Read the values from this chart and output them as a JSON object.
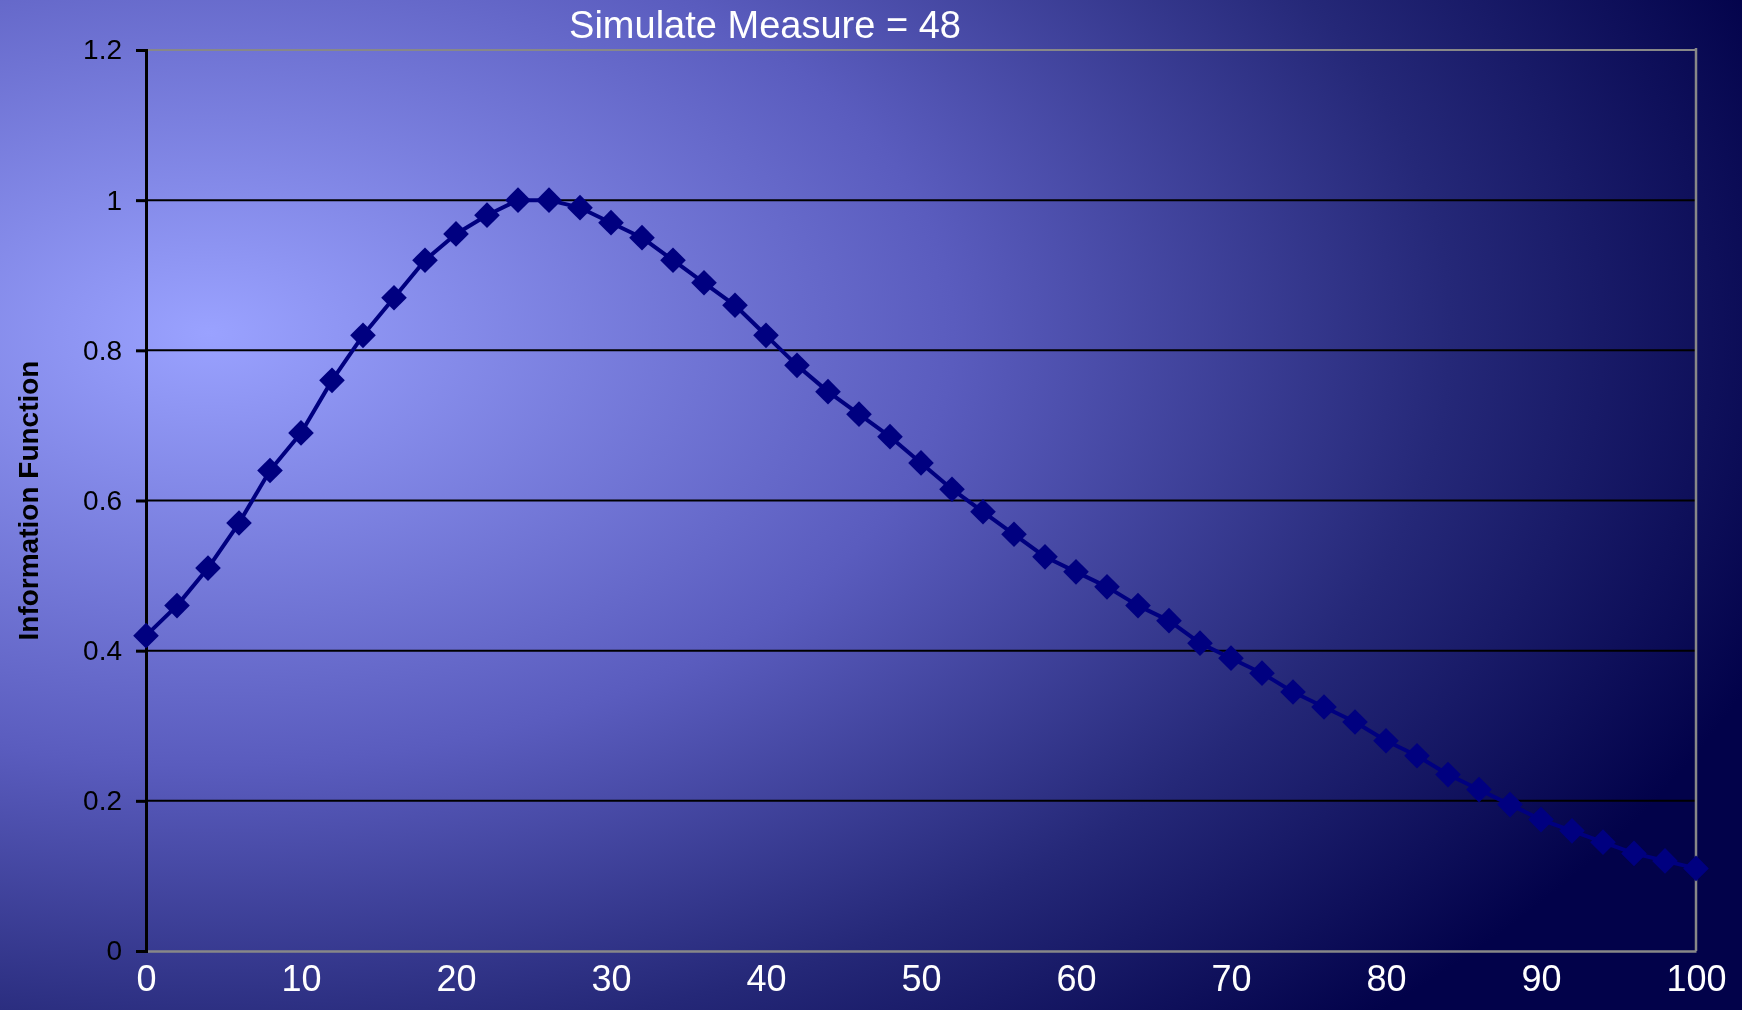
{
  "chart_data": {
    "type": "line",
    "title": "Simulate Measure = 48",
    "ylabel": "Information Function",
    "x": [
      0,
      2,
      4,
      6,
      8,
      10,
      12,
      14,
      16,
      18,
      20,
      22,
      24,
      26,
      28,
      30,
      32,
      34,
      36,
      38,
      40,
      42,
      44,
      46,
      48,
      50,
      52,
      54,
      56,
      58,
      60,
      62,
      64,
      66,
      68,
      70,
      72,
      74,
      76,
      78,
      80,
      82,
      84,
      86,
      88,
      90,
      92,
      94,
      96,
      98,
      100
    ],
    "series": [
      {
        "color": "#000080",
        "values": [
          0.42,
          0.46,
          0.51,
          0.57,
          0.64,
          0.69,
          0.76,
          0.82,
          0.87,
          0.92,
          0.955,
          0.98,
          1.0,
          1.0,
          0.99,
          0.97,
          0.95,
          0.92,
          0.89,
          0.86,
          0.82,
          0.78,
          0.745,
          0.715,
          0.685,
          0.65,
          0.615,
          0.585,
          0.555,
          0.525,
          0.505,
          0.485,
          0.46,
          0.44,
          0.41,
          0.39,
          0.37,
          0.345,
          0.325,
          0.305,
          0.28,
          0.26,
          0.235,
          0.215,
          0.195,
          0.175,
          0.16,
          0.145,
          0.13,
          0.12,
          0.11
        ]
      }
    ],
    "xlim": [
      0,
      100
    ],
    "xticks": [
      0,
      10,
      20,
      30,
      40,
      50,
      60,
      70,
      80,
      90,
      100
    ],
    "ylim": [
      0,
      1.2
    ],
    "yticks": [
      0,
      0.2,
      0.4,
      0.6,
      0.8,
      1,
      1.2
    ],
    "grid": "y",
    "marker": "diamond",
    "line_style": "solid"
  }
}
